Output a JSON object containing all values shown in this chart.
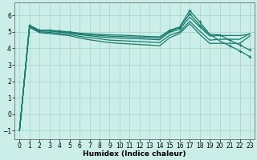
{
  "xlabel": "Humidex (Indice chaleur)",
  "bg_color": "#cceee8",
  "grid_color": "#aad8d0",
  "line_color": "#1a7a6e",
  "x_values": [
    0,
    1,
    2,
    3,
    4,
    5,
    6,
    7,
    8,
    9,
    10,
    11,
    12,
    13,
    14,
    15,
    16,
    17,
    18,
    19,
    20,
    21,
    22,
    23
  ],
  "lines": [
    [
      -1.0,
      5.4,
      5.1,
      5.1,
      5.05,
      5.0,
      4.92,
      4.88,
      4.85,
      4.82,
      4.8,
      4.78,
      4.75,
      4.72,
      4.7,
      5.1,
      5.3,
      6.3,
      5.6,
      4.85,
      4.45,
      4.15,
      3.85,
      3.5
    ],
    [
      -1.0,
      5.38,
      5.08,
      5.08,
      5.02,
      4.97,
      4.88,
      4.82,
      4.78,
      4.74,
      4.72,
      4.7,
      4.68,
      4.65,
      4.62,
      5.05,
      5.25,
      6.1,
      5.4,
      4.85,
      4.82,
      4.5,
      4.2,
      3.9
    ],
    [
      -1.0,
      5.35,
      5.05,
      5.05,
      4.98,
      4.93,
      4.83,
      4.76,
      4.7,
      4.65,
      4.62,
      4.6,
      4.58,
      4.55,
      4.52,
      4.98,
      5.15,
      5.9,
      5.3,
      4.75,
      4.78,
      4.78,
      4.78,
      4.85
    ],
    [
      -1.0,
      5.3,
      5.0,
      4.97,
      4.9,
      4.85,
      4.73,
      4.65,
      4.58,
      4.5,
      4.47,
      4.44,
      4.41,
      4.38,
      4.35,
      4.8,
      5.0,
      5.65,
      5.05,
      4.5,
      4.55,
      4.55,
      4.55,
      4.9
    ],
    [
      -1.0,
      5.28,
      4.95,
      4.9,
      4.83,
      4.77,
      4.63,
      4.52,
      4.43,
      4.35,
      4.3,
      4.27,
      4.23,
      4.2,
      4.15,
      4.65,
      4.9,
      5.5,
      4.85,
      4.3,
      4.3,
      4.3,
      4.3,
      4.75
    ]
  ],
  "ylim": [
    -1.5,
    6.8
  ],
  "xlim": [
    -0.5,
    23.5
  ],
  "yticks": [
    -1,
    0,
    1,
    2,
    3,
    4,
    5,
    6
  ],
  "xtick_labels": [
    "0",
    "1",
    "2",
    "3",
    "4",
    "5",
    "6",
    "7",
    "8",
    "9",
    "10",
    "11",
    "12",
    "13",
    "14",
    "15",
    "16",
    "17",
    "18",
    "19",
    "20",
    "21",
    "22",
    "23"
  ],
  "font_size": 5.5,
  "xlabel_font_size": 6.5
}
